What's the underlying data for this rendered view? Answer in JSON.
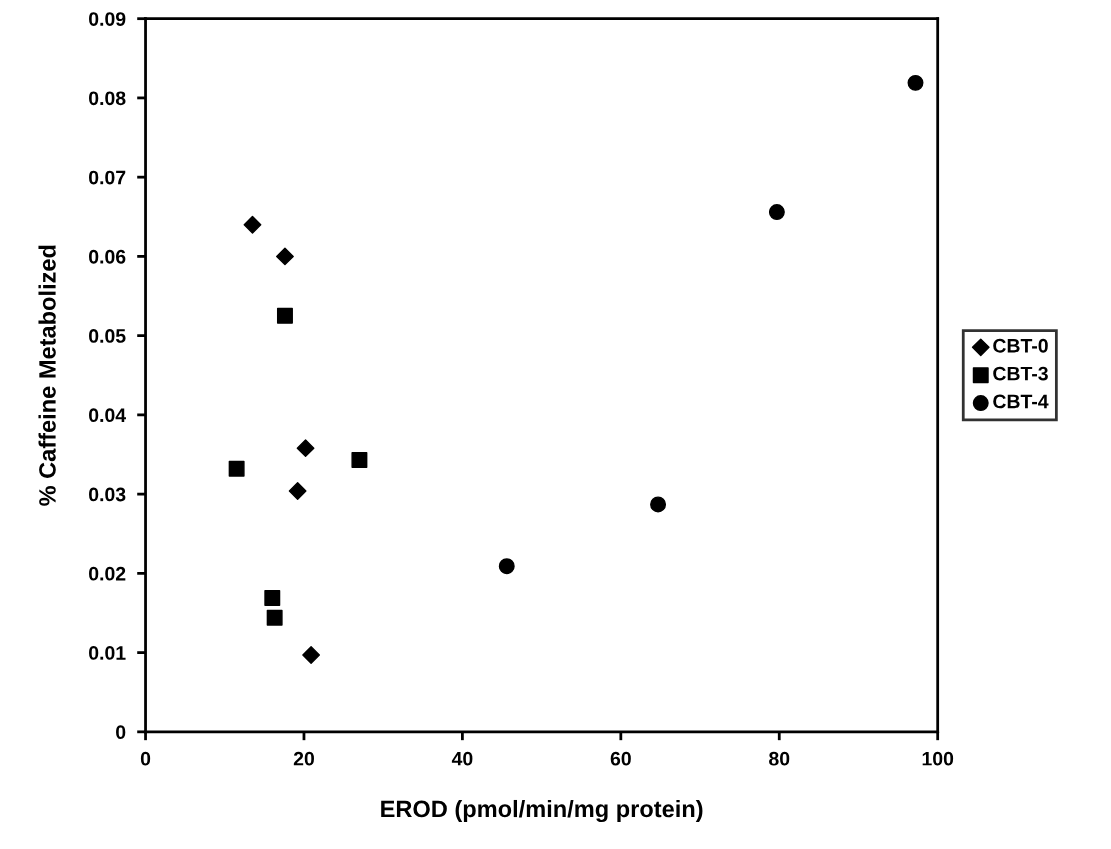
{
  "chart_data": {
    "type": "scatter",
    "xlabel": "EROD (pmol/min/mg protein)",
    "ylabel": "% Caffeine Metabolized",
    "xlim": [
      0,
      100
    ],
    "xticks": [
      0,
      20,
      40,
      60,
      80,
      100
    ],
    "ylim": [
      0,
      0.09
    ],
    "yticks": [
      {
        "value": 0,
        "label": "0"
      },
      {
        "value": 0.01,
        "label": "0.01"
      },
      {
        "value": 0.02,
        "label": "0.02"
      },
      {
        "value": 0.03,
        "label": "0.03"
      },
      {
        "value": 0.04,
        "label": "0.04"
      },
      {
        "value": 0.05,
        "label": "0.05"
      },
      {
        "value": 0.06,
        "label": "0.06"
      },
      {
        "value": 0.07,
        "label": "0.07"
      },
      {
        "value": 0.08,
        "label": "0.08"
      },
      {
        "value": 0.09,
        "label": "0.09"
      }
    ],
    "grid": false,
    "legend": "right",
    "series": [
      {
        "name": "CBT-0",
        "color": "#000000",
        "marker": "diamond",
        "x": [
          13.5,
          17.6,
          20.2,
          19.2,
          20.9
        ],
        "values": [
          0.064,
          0.06,
          0.0358,
          0.0304,
          0.0097
        ]
      },
      {
        "name": "CBT-3",
        "color": "#000000",
        "marker": "square",
        "x": [
          17.6,
          11.5,
          27.0,
          16.0,
          16.3
        ],
        "values": [
          0.0525,
          0.0332,
          0.0343,
          0.0169,
          0.0144
        ]
      },
      {
        "name": "CBT-4",
        "color": "#000000",
        "marker": "circle",
        "x": [
          97.2,
          79.7,
          64.7,
          45.6
        ],
        "values": [
          0.0819,
          0.0656,
          0.0287,
          0.0209
        ]
      }
    ]
  }
}
